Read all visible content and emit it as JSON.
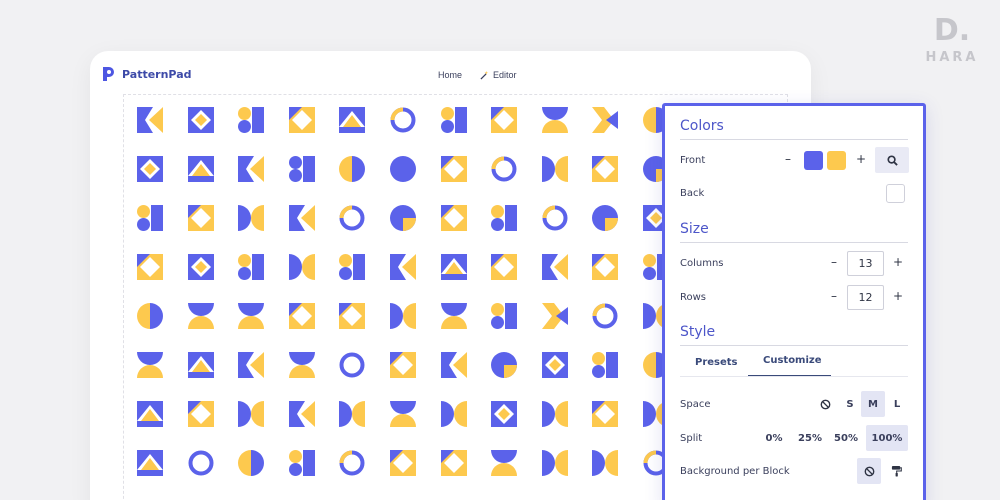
{
  "watermark": {
    "letter": "D",
    "dot": ".",
    "name": "HARA"
  },
  "app": {
    "name": "PatternPad",
    "nav": [
      {
        "label": "Home",
        "icon": "none"
      },
      {
        "label": "Editor",
        "icon": "magic-wand-icon"
      }
    ]
  },
  "colors": {
    "primary": "#5b62ea",
    "secondary": "#fdc94e"
  },
  "grid": {
    "rows": [
      [
        "chevron-left",
        "diamond-cutout",
        "circles-square",
        "diamond-cutout-yellow",
        "triangle-house",
        "ring-half",
        "circles-square",
        "diamond-cutout-yellow",
        "hourglass",
        "chevron-yellow",
        "half-circle"
      ],
      [
        "diamond-cutout",
        "triangle-house",
        "chevron-left",
        "circle-square-half",
        "circle-halves",
        "circle",
        "diamond-cutout-yellow",
        "ring-half",
        "bowtie",
        "diamond-cutout-yellow",
        "circle-quarter"
      ],
      [
        "circles-square",
        "diamond-cutout-yellow",
        "bowtie",
        "chevron-left",
        "ring-half",
        "circle-quarter",
        "diamond-cutout-yellow",
        "circles-square",
        "ring-half",
        "circle-quarter",
        "diamond-cutout"
      ],
      [
        "diamond-cutout-yellow",
        "diamond-cutout",
        "circles-square",
        "bowtie",
        "circles-square",
        "chevron-left",
        "triangle-house",
        "diamond-cutout-yellow",
        "chevron-left",
        "diamond-cutout-yellow",
        "circles-square"
      ],
      [
        "circle-halves",
        "hourglass",
        "hourglass",
        "diamond-cutout-yellow",
        "diamond-cutout-yellow",
        "bowtie",
        "hourglass",
        "circles-square",
        "chevron-yellow",
        "ring-half",
        "bowtie"
      ],
      [
        "hourglass",
        "triangle-house",
        "chevron-left",
        "hourglass",
        "ring",
        "diamond-cutout-yellow",
        "chevron-left",
        "circle-quarter",
        "diamond-cutout",
        "circles-square",
        "half-circle"
      ],
      [
        "triangle-house",
        "diamond-cutout-yellow",
        "bowtie",
        "chevron-left",
        "bowtie",
        "hourglass",
        "bowtie",
        "diamond-cutout",
        "bowtie",
        "diamond-cutout-yellow",
        "bowtie"
      ],
      [
        "triangle-house",
        "ring",
        "half-circle",
        "circles-square",
        "ring-half",
        "diamond-cutout-yellow",
        "diamond-cutout-yellow",
        "hourglass",
        "bowtie",
        "bowtie",
        "ring-half"
      ]
    ]
  },
  "panel": {
    "colors": {
      "title": "Colors",
      "front_label": "Front",
      "front_colors": [
        "#5b62ea",
        "#fdc94e"
      ],
      "minus": "–",
      "plus": "+",
      "back_label": "Back",
      "back_color": "#ffffff"
    },
    "size": {
      "title": "Size",
      "columns_label": "Columns",
      "columns_value": "13",
      "rows_label": "Rows",
      "rows_value": "12",
      "minus": "–",
      "plus": "+"
    },
    "style": {
      "title": "Style",
      "tabs": [
        "Presets",
        "Customize"
      ],
      "active_tab": "Customize",
      "space_label": "Space",
      "space_options": [
        "S",
        "M",
        "L"
      ],
      "space_selected": "M",
      "split_label": "Split",
      "split_options": [
        "0%",
        "25%",
        "50%",
        "100%"
      ],
      "split_selected": "100%",
      "bg_label": "Background per Block"
    }
  }
}
